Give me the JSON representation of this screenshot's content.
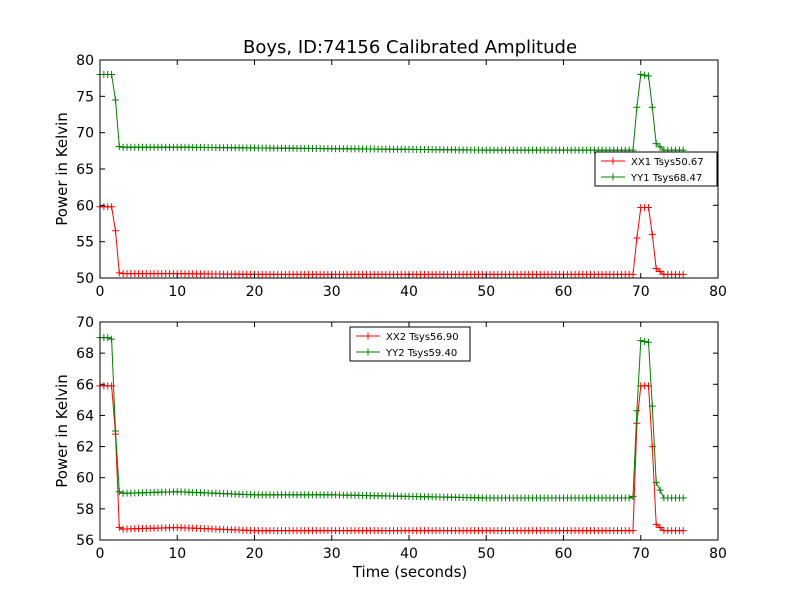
{
  "chart_data": [
    {
      "type": "line",
      "title": "Boys, ID:74156 Calibrated Amplitude",
      "xlabel": "",
      "ylabel": "Power in Kelvin",
      "xlim": [
        0,
        80
      ],
      "ylim": [
        50,
        80
      ],
      "xticks": [
        0,
        10,
        20,
        30,
        40,
        50,
        60,
        70,
        80
      ],
      "yticks": [
        50,
        55,
        60,
        65,
        70,
        75,
        80
      ],
      "grid": false,
      "legend_position": "right",
      "series": [
        {
          "name": "XX1 Tsys50.67",
          "color": "#ff0000",
          "x": [
            0,
            1,
            1.5,
            2,
            2.5,
            3,
            10,
            20,
            30,
            40,
            50,
            60,
            68,
            69,
            69.5,
            70,
            71,
            71.5,
            72,
            73,
            75.5
          ],
          "y": [
            59.8,
            59.8,
            59.8,
            56.5,
            50.7,
            50.6,
            50.6,
            50.5,
            50.5,
            50.5,
            50.5,
            50.5,
            50.5,
            50.5,
            55.5,
            59.7,
            59.7,
            56.0,
            51.3,
            50.5,
            50.5
          ]
        },
        {
          "name": "YY1 Tsys68.47",
          "color": "#008000",
          "x": [
            0,
            1,
            1.5,
            2,
            2.5,
            3,
            10,
            20,
            30,
            40,
            50,
            60,
            68,
            69,
            69.5,
            70,
            71,
            71.5,
            72,
            73,
            75.5
          ],
          "y": [
            78.0,
            78.0,
            78.0,
            74.5,
            68.1,
            68.0,
            68.0,
            67.9,
            67.8,
            67.7,
            67.6,
            67.6,
            67.6,
            67.6,
            73.5,
            78.0,
            77.8,
            73.5,
            68.5,
            67.6,
            67.6
          ]
        }
      ]
    },
    {
      "type": "line",
      "title": "",
      "xlabel": "Time (seconds)",
      "ylabel": "Power in Kelvin",
      "xlim": [
        0,
        80
      ],
      "ylim": [
        56,
        70
      ],
      "xticks": [
        0,
        10,
        20,
        30,
        40,
        50,
        60,
        70,
        80
      ],
      "yticks": [
        56,
        58,
        60,
        62,
        64,
        66,
        68,
        70
      ],
      "grid": false,
      "legend_position": "top-center",
      "series": [
        {
          "name": "XX2 Tsys56.90",
          "color": "#ff0000",
          "x": [
            0,
            1,
            1.5,
            2,
            2.5,
            3,
            10,
            20,
            30,
            40,
            50,
            60,
            68.5,
            69,
            69.5,
            70,
            71,
            71.5,
            72,
            73,
            75.5
          ],
          "y": [
            65.9,
            65.9,
            65.9,
            62.8,
            56.8,
            56.7,
            56.8,
            56.6,
            56.6,
            56.6,
            56.6,
            56.6,
            56.6,
            56.6,
            63.5,
            65.9,
            65.9,
            62.0,
            57.0,
            56.6,
            56.6
          ]
        },
        {
          "name": "YY2 Tsys59.40",
          "color": "#008000",
          "x": [
            0,
            1,
            1.5,
            2,
            2.5,
            3,
            10,
            20,
            30,
            40,
            50,
            60,
            68.5,
            69,
            69.5,
            70,
            71,
            71.5,
            72,
            73,
            75.5
          ],
          "y": [
            69.0,
            69.0,
            68.9,
            63.0,
            59.1,
            59.0,
            59.1,
            58.9,
            58.9,
            58.8,
            58.7,
            58.7,
            58.7,
            58.8,
            64.3,
            68.8,
            68.7,
            64.6,
            59.7,
            58.7,
            58.7
          ]
        }
      ]
    }
  ]
}
